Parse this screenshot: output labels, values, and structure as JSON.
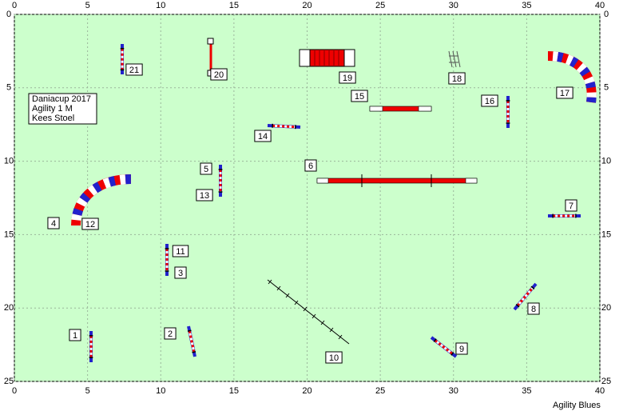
{
  "axes": {
    "xticks": [
      0,
      5,
      10,
      15,
      20,
      25,
      30,
      35,
      40
    ],
    "yticks": [
      0,
      5,
      10,
      15,
      20,
      25
    ]
  },
  "info": {
    "lines": [
      "Daniacup 2017",
      "Agility 1 M",
      "Kees Stoel"
    ]
  },
  "labels": [
    1,
    2,
    3,
    4,
    5,
    6,
    7,
    8,
    9,
    10,
    11,
    12,
    13,
    14,
    15,
    16,
    17,
    18,
    19,
    20,
    21
  ],
  "footer": "Agility Blues"
}
